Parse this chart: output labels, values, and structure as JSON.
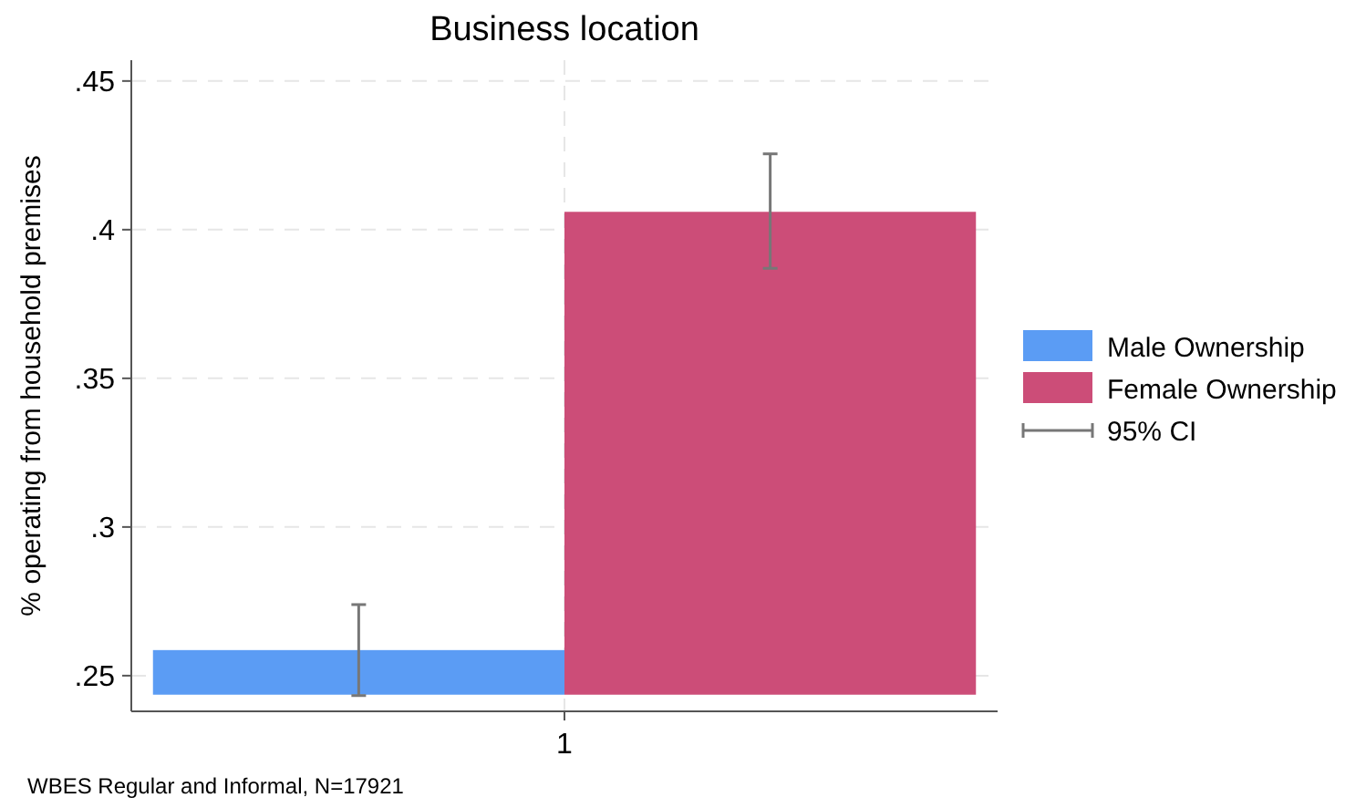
{
  "chart_data": {
    "type": "bar",
    "title": "Business location",
    "ylabel": "% operating from household premises",
    "categories": [
      "1"
    ],
    "series": [
      {
        "name": "Male Ownership",
        "color": "#5b9cf4",
        "values": [
          0.015
        ],
        "base": [
          0.2436
        ],
        "errors": [
          [
            0.2433,
            0.2739
          ]
        ]
      },
      {
        "name": "Female Ownership",
        "color": "#cc4d78",
        "values": [
          0.1624
        ],
        "base": [
          0.2436
        ],
        "errors": [
          [
            0.387,
            0.4255
          ]
        ]
      }
    ],
    "ylim": [
      0.238,
      0.457
    ],
    "yticks": [
      {
        "value": 0.25,
        "label": ".25"
      },
      {
        "value": 0.3,
        "label": ".3"
      },
      {
        "value": 0.35,
        "label": ".35"
      },
      {
        "value": 0.4,
        "label": ".4"
      },
      {
        "value": 0.45,
        "label": ".45"
      }
    ],
    "grid": true,
    "legend": "right",
    "annotations": [
      "95% CI",
      "WBES Regular and Informal, N=17921"
    ]
  }
}
